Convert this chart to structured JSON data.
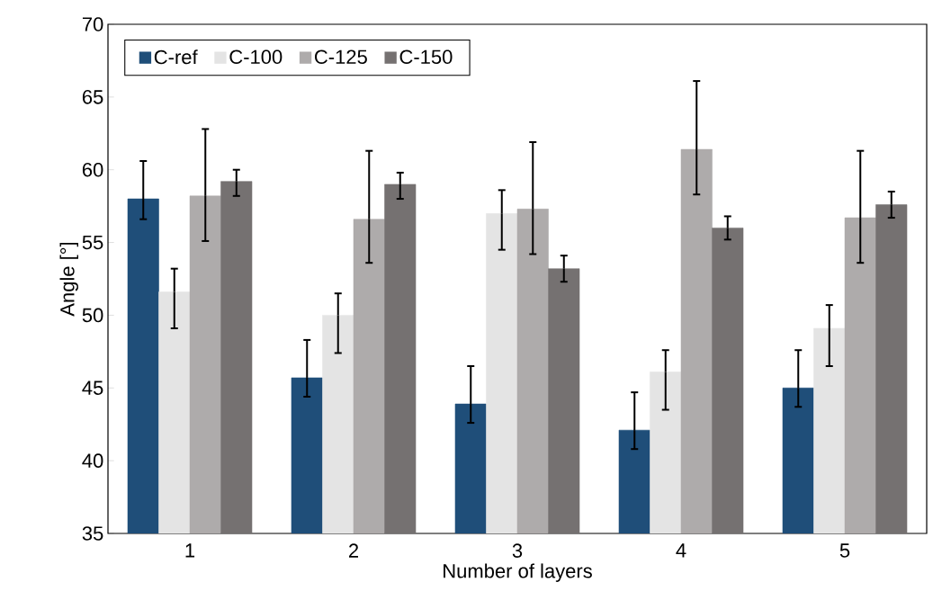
{
  "chart_data": {
    "type": "bar",
    "xlabel": "Number of layers",
    "ylabel": "Angle [°]",
    "categories": [
      "1",
      "2",
      "3",
      "4",
      "5"
    ],
    "series": [
      {
        "name": "C-ref",
        "color": "#1f4e79",
        "values": [
          58.0,
          45.7,
          43.9,
          42.1,
          45.0
        ],
        "errors": [
          [
            56.6,
            60.6
          ],
          [
            44.4,
            48.3
          ],
          [
            42.6,
            46.5
          ],
          [
            40.8,
            44.7
          ],
          [
            43.7,
            47.6
          ]
        ]
      },
      {
        "name": "C-100",
        "color": "#e4e4e4",
        "values": [
          51.6,
          50.0,
          57.0,
          46.1,
          49.1
        ],
        "errors": [
          [
            49.1,
            53.2
          ],
          [
            47.4,
            51.5
          ],
          [
            54.5,
            58.6
          ],
          [
            43.5,
            47.6
          ],
          [
            46.5,
            50.7
          ]
        ]
      },
      {
        "name": "C-125",
        "color": "#aeabab",
        "values": [
          58.2,
          56.6,
          57.3,
          61.4,
          56.7
        ],
        "errors": [
          [
            55.1,
            62.8
          ],
          [
            53.6,
            61.3
          ],
          [
            54.2,
            61.9
          ],
          [
            58.3,
            66.1
          ],
          [
            53.6,
            61.3
          ]
        ]
      },
      {
        "name": "C-150",
        "color": "#757171",
        "values": [
          59.2,
          59.0,
          53.2,
          56.0,
          57.6
        ],
        "errors": [
          [
            58.2,
            60.0
          ],
          [
            58.0,
            59.8
          ],
          [
            52.3,
            54.1
          ],
          [
            55.2,
            56.8
          ],
          [
            56.7,
            58.5
          ]
        ]
      }
    ],
    "ylim": [
      35,
      70
    ],
    "yticks": [
      35,
      40,
      45,
      50,
      55,
      60,
      65,
      70
    ],
    "grid": false,
    "legend": "top left"
  }
}
